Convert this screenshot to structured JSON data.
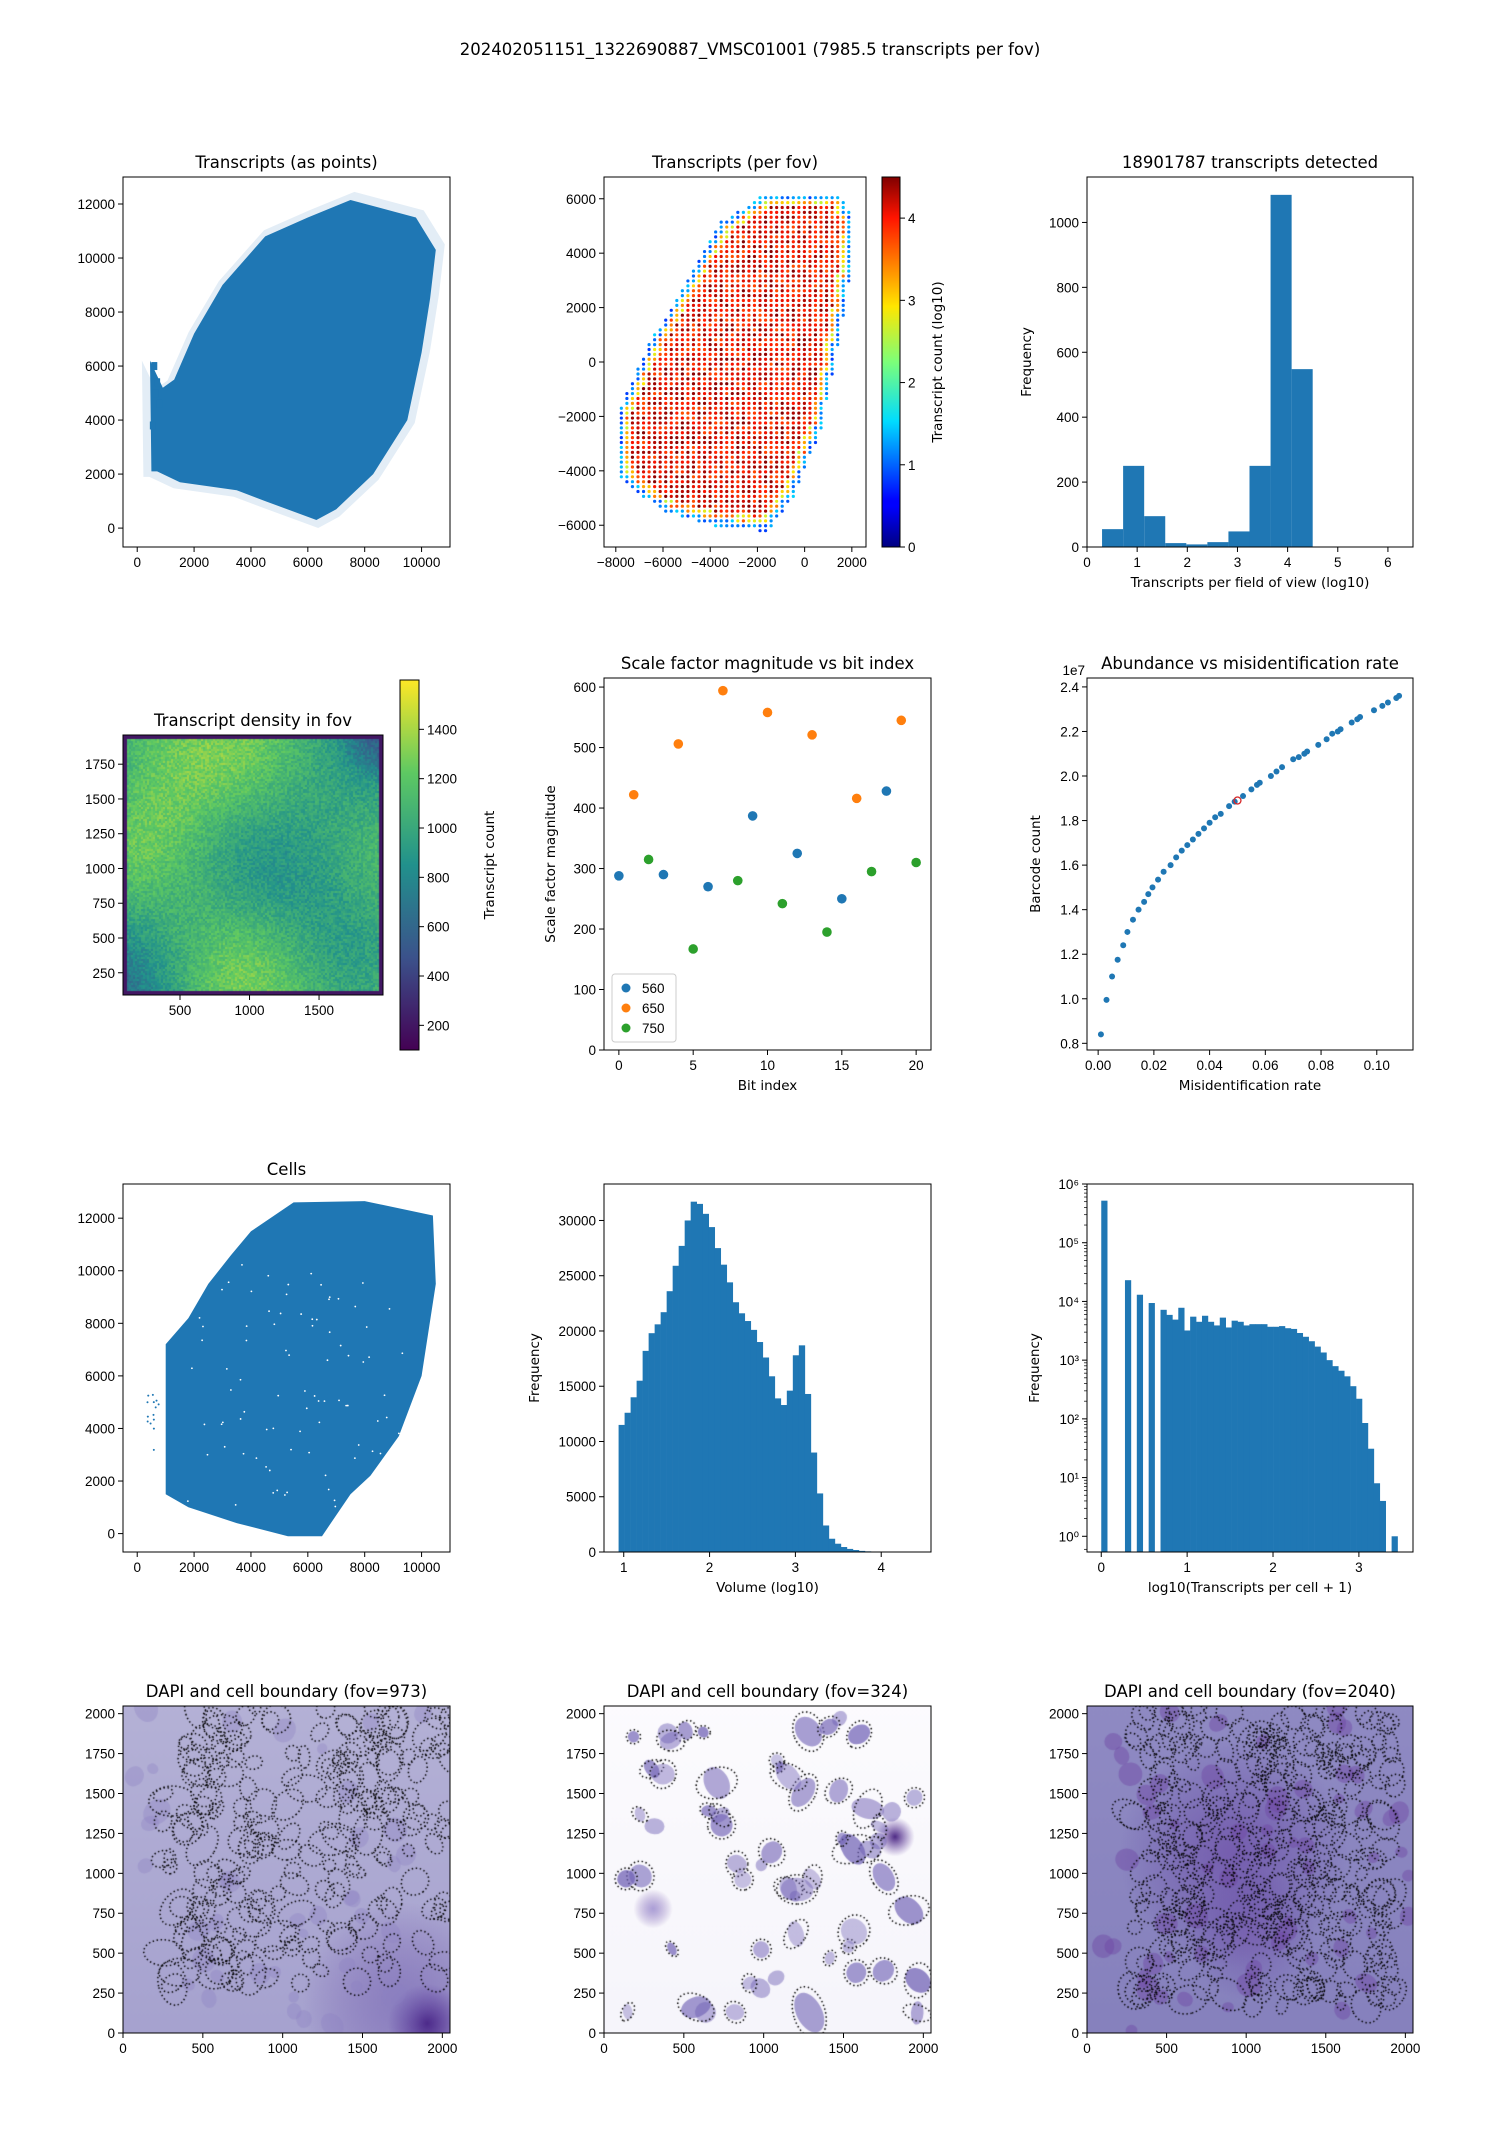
{
  "suptitle": "202402051151_1322690887_VMSC01001 (7985.5 transcripts per fov)",
  "colors": {
    "blue": "#1f77b4",
    "orange": "#ff7f0e",
    "green": "#2ca02c",
    "highlight": "#d62728"
  },
  "chart_data": [
    {
      "type": "scatter",
      "title": "Transcripts (as points)",
      "xlabel": "",
      "ylabel": "",
      "xlim": [
        -500,
        11000
      ],
      "ylim": [
        -700,
        13000
      ],
      "xticks": [
        0,
        2000,
        4000,
        6000,
        8000,
        10000
      ],
      "xticklabels": [
        "0",
        "2000",
        "4000",
        "6000",
        "8000",
        "10000"
      ],
      "yticks": [
        0,
        2000,
        4000,
        6000,
        8000,
        10000,
        12000
      ],
      "yticklabels": [
        "0",
        "2000",
        "4000",
        "6000",
        "8000",
        "10000",
        "12000"
      ],
      "color": "#1f77b4",
      "outline": [
        [
          500,
          2100
        ],
        [
          450,
          6200
        ],
        [
          900,
          5200
        ],
        [
          1300,
          5500
        ],
        [
          2000,
          7200
        ],
        [
          3000,
          9000
        ],
        [
          4500,
          10800
        ],
        [
          6000,
          11500
        ],
        [
          7500,
          12150
        ],
        [
          9800,
          11500
        ],
        [
          10500,
          10300
        ],
        [
          10300,
          8500
        ],
        [
          10000,
          6500
        ],
        [
          9500,
          4000
        ],
        [
          8300,
          2000
        ],
        [
          7000,
          700
        ],
        [
          6300,
          300
        ],
        [
          4500,
          1000
        ],
        [
          3500,
          1400
        ],
        [
          1500,
          1700
        ],
        [
          700,
          2100
        ]
      ]
    },
    {
      "type": "scatter",
      "title": "Transcripts (per fov)",
      "xlabel": "",
      "ylabel": "",
      "xlim": [
        -8500,
        2600
      ],
      "ylim": [
        -6800,
        6800
      ],
      "xticks": [
        -8000,
        -6000,
        -4000,
        -2000,
        0,
        2000
      ],
      "xticklabels": [
        "−8000",
        "−6000",
        "−4000",
        "−2000",
        "0",
        "2000"
      ],
      "yticks": [
        -6000,
        -4000,
        -2000,
        0,
        2000,
        4000,
        6000
      ],
      "yticklabels": [
        "−6000",
        "−4000",
        "−2000",
        "0",
        "2000",
        "4000",
        "6000"
      ],
      "colormap": "jet",
      "colorbar": {
        "label": "Transcript count (log10)",
        "range": [
          0,
          4.5
        ],
        "ticks": [
          0,
          1,
          2,
          3,
          4
        ],
        "ticklabels": [
          "0",
          "1",
          "2",
          "3",
          "4"
        ]
      },
      "outline": [
        [
          -1600,
          -6250
        ],
        [
          -500,
          -5000
        ],
        [
          700,
          -2500
        ],
        [
          1500,
          1000
        ],
        [
          1900,
          3000
        ],
        [
          2100,
          5200
        ],
        [
          1500,
          6250
        ],
        [
          -1500,
          6250
        ],
        [
          -3500,
          5200
        ],
        [
          -5000,
          3000
        ],
        [
          -6700,
          500
        ],
        [
          -8000,
          -2000
        ],
        [
          -7800,
          -4300
        ],
        [
          -6000,
          -5500
        ],
        [
          -4000,
          -6000
        ]
      ]
    },
    {
      "type": "bar",
      "title": "18901787 transcripts detected",
      "xlabel": "Transcripts per field of view (log10)",
      "ylabel": "Frequency",
      "xlim": [
        0,
        6.5
      ],
      "ylim": [
        0,
        1140
      ],
      "xticks": [
        0,
        1,
        2,
        3,
        4,
        5,
        6
      ],
      "xticklabels": [
        "0",
        "1",
        "2",
        "3",
        "4",
        "5",
        "6"
      ],
      "yticks": [
        0,
        200,
        400,
        600,
        800,
        1000
      ],
      "yticklabels": [
        "0",
        "200",
        "400",
        "600",
        "800",
        "1000"
      ],
      "bin_edges": [
        0.3,
        0.72,
        1.14,
        1.56,
        1.98,
        2.4,
        2.82,
        3.24,
        3.66,
        4.08,
        4.5
      ],
      "values": [
        55,
        250,
        95,
        12,
        8,
        15,
        48,
        250,
        1085,
        548
      ]
    },
    {
      "type": "heatmap",
      "title": "Transcript density in fov",
      "xlabel": "",
      "ylabel": "",
      "xlim": [
        90,
        1960
      ],
      "ylim": [
        90,
        1960
      ],
      "xticks": [
        500,
        1000,
        1500
      ],
      "xticklabels": [
        "500",
        "1000",
        "1500"
      ],
      "yticks": [
        250,
        500,
        750,
        1000,
        1250,
        1500,
        1750
      ],
      "yticklabels": [
        "250",
        "500",
        "750",
        "1000",
        "1250",
        "1500",
        "1750"
      ],
      "colormap": "viridis",
      "colorbar": {
        "label": "Transcript count",
        "range": [
          100,
          1600
        ],
        "ticks": [
          200,
          400,
          600,
          800,
          1000,
          1200,
          1400
        ],
        "ticklabels": [
          "200",
          "400",
          "600",
          "800",
          "1000",
          "1200",
          "1400"
        ]
      }
    },
    {
      "type": "scatter",
      "title": "Scale factor magnitude vs bit index",
      "xlabel": "Bit index",
      "ylabel": "Scale factor magnitude",
      "xlim": [
        -1,
        21
      ],
      "ylim": [
        0,
        615
      ],
      "xticks": [
        0,
        5,
        10,
        15,
        20
      ],
      "xticklabels": [
        "0",
        "5",
        "10",
        "15",
        "20"
      ],
      "yticks": [
        0,
        100,
        200,
        300,
        400,
        500,
        600
      ],
      "yticklabels": [
        "0",
        "100",
        "200",
        "300",
        "400",
        "500",
        "600"
      ],
      "legend": "lower-left",
      "series": [
        {
          "name": "560",
          "color": "#1f77b4",
          "x": [
            0,
            3,
            6,
            9,
            12,
            15,
            18
          ],
          "y": [
            288,
            290,
            270,
            387,
            325,
            250,
            428
          ]
        },
        {
          "name": "650",
          "color": "#ff7f0e",
          "x": [
            1,
            4,
            7,
            10,
            13,
            16,
            19
          ],
          "y": [
            422,
            506,
            594,
            558,
            521,
            416,
            545
          ]
        },
        {
          "name": "750",
          "color": "#2ca02c",
          "x": [
            2,
            5,
            8,
            11,
            14,
            17,
            20
          ],
          "y": [
            315,
            167,
            280,
            242,
            195,
            295,
            310
          ]
        }
      ]
    },
    {
      "type": "scatter",
      "title": "Abundance vs misidentification rate",
      "xlabel": "Misidentification rate",
      "ylabel": "Barcode count",
      "y_offset_text": "1e7",
      "xlim": [
        -0.004,
        0.113
      ],
      "ylim": [
        0.77,
        2.44
      ],
      "xticks": [
        0,
        0.02,
        0.04,
        0.06,
        0.08,
        0.1
      ],
      "xticklabels": [
        "0.00",
        "0.02",
        "0.04",
        "0.06",
        "0.08",
        "0.10"
      ],
      "yticks": [
        0.8,
        1.0,
        1.2,
        1.4,
        1.6,
        1.8,
        2.0,
        2.2,
        2.4
      ],
      "yticklabels": [
        "0.8",
        "1.0",
        "1.2",
        "1.4",
        "1.6",
        "1.8",
        "2.0",
        "2.2",
        "2.4"
      ],
      "x": [
        0.001,
        0.003,
        0.005,
        0.007,
        0.009,
        0.0105,
        0.0125,
        0.0145,
        0.0165,
        0.018,
        0.0195,
        0.0215,
        0.0235,
        0.026,
        0.028,
        0.03,
        0.032,
        0.034,
        0.036,
        0.038,
        0.04,
        0.042,
        0.044,
        0.047,
        0.049,
        0.052,
        0.055,
        0.057,
        0.058,
        0.062,
        0.064,
        0.066,
        0.07,
        0.072,
        0.074,
        0.075,
        0.079,
        0.082,
        0.084,
        0.086,
        0.087,
        0.091,
        0.093,
        0.094,
        0.099,
        0.102,
        0.104,
        0.107,
        0.108
      ],
      "y": [
        0.84,
        0.995,
        1.1,
        1.175,
        1.24,
        1.3,
        1.355,
        1.4,
        1.435,
        1.47,
        1.5,
        1.535,
        1.57,
        1.6,
        1.635,
        1.665,
        1.69,
        1.715,
        1.74,
        1.765,
        1.79,
        1.815,
        1.83,
        1.865,
        1.885,
        1.91,
        1.94,
        1.96,
        1.97,
        2.0,
        2.02,
        2.04,
        2.075,
        2.085,
        2.1,
        2.11,
        2.14,
        2.165,
        2.19,
        2.2,
        2.21,
        2.24,
        2.255,
        2.265,
        2.295,
        2.315,
        2.33,
        2.35,
        2.36
      ],
      "highlight": {
        "x": 0.05,
        "y": 1.89
      }
    },
    {
      "type": "scatter",
      "title": "Cells",
      "xlabel": "",
      "ylabel": "",
      "xlim": [
        -500,
        11000
      ],
      "ylim": [
        -700,
        13300
      ],
      "xticks": [
        0,
        2000,
        4000,
        6000,
        8000,
        10000
      ],
      "xticklabels": [
        "0",
        "2000",
        "4000",
        "6000",
        "8000",
        "10000"
      ],
      "yticks": [
        0,
        2000,
        4000,
        6000,
        8000,
        10000,
        12000
      ],
      "yticklabels": [
        "0",
        "2000",
        "4000",
        "6000",
        "8000",
        "10000",
        "12000"
      ],
      "color": "#1f77b4",
      "outline": [
        [
          1000,
          1500
        ],
        [
          1000,
          7200
        ],
        [
          1800,
          8200
        ],
        [
          2500,
          9500
        ],
        [
          3300,
          10600
        ],
        [
          4000,
          11500
        ],
        [
          5500,
          12600
        ],
        [
          8000,
          12650
        ],
        [
          10400,
          12100
        ],
        [
          10500,
          9500
        ],
        [
          10000,
          6000
        ],
        [
          9200,
          3700
        ],
        [
          8200,
          2200
        ],
        [
          7500,
          1500
        ],
        [
          6500,
          -100
        ],
        [
          5300,
          -100
        ],
        [
          3500,
          400
        ],
        [
          1800,
          1000
        ]
      ]
    },
    {
      "type": "bar",
      "title": "",
      "xlabel": "Volume (log10)",
      "ylabel": "Frequency",
      "xlim": [
        0.77,
        4.58
      ],
      "ylim": [
        0,
        33300
      ],
      "xticks": [
        1,
        2,
        3,
        4
      ],
      "xticklabels": [
        "1",
        "2",
        "3",
        "4"
      ],
      "yticks": [
        0,
        5000,
        10000,
        15000,
        20000,
        25000,
        30000
      ],
      "yticklabels": [
        "0",
        "5000",
        "10000",
        "15000",
        "20000",
        "25000",
        "30000"
      ],
      "bin_range": [
        0.94,
        4.44
      ],
      "values": [
        11500,
        12600,
        14000,
        15500,
        18200,
        19800,
        20600,
        21700,
        23600,
        25900,
        27700,
        30000,
        31700,
        31500,
        30600,
        29400,
        27500,
        26000,
        24400,
        22600,
        21600,
        20900,
        20100,
        19000,
        17600,
        15900,
        13900,
        13300,
        14600,
        17800,
        18700,
        14300,
        9000,
        5300,
        2400,
        1200,
        750,
        450,
        280,
        180,
        100,
        60,
        40,
        25,
        15,
        10,
        8,
        5,
        3,
        2
      ]
    },
    {
      "type": "bar",
      "title": "",
      "xlabel": "log10(Transcripts per cell + 1)",
      "ylabel": "Frequency",
      "yscale": "log",
      "xlim": [
        -0.166,
        3.63
      ],
      "ylim": [
        0.54,
        1000000
      ],
      "xticks": [
        0,
        1,
        2,
        3
      ],
      "xticklabels": [
        "0",
        "1",
        "2",
        "3"
      ],
      "yticks": [
        1,
        10,
        100,
        1000,
        10000,
        100000,
        1000000
      ],
      "yticklabels": [
        "10⁰",
        "10¹",
        "10²",
        "10³",
        "10⁴",
        "10⁵",
        "10⁶"
      ],
      "bin_range": [
        0,
        3.45
      ],
      "values": [
        520000,
        0,
        0,
        0,
        23000,
        0,
        13000,
        0,
        9400,
        0,
        7200,
        5900,
        4900,
        7800,
        3200,
        5500,
        4500,
        5700,
        4500,
        3900,
        5300,
        3600,
        4700,
        4500,
        3900,
        4100,
        4100,
        4100,
        3700,
        3700,
        3800,
        3500,
        3400,
        2900,
        2500,
        2100,
        1700,
        1350,
        1000,
        790,
        660,
        530,
        360,
        220,
        85,
        31,
        8,
        4,
        0,
        1
      ]
    },
    {
      "type": "image",
      "title": "DAPI and cell boundary (fov=973)",
      "xlabel": "",
      "ylabel": "",
      "xlim": [
        0,
        2048
      ],
      "ylim": [
        0,
        2048
      ],
      "xticks": [
        0,
        500,
        1000,
        1500,
        2000
      ],
      "xticklabels": [
        "0",
        "500",
        "1000",
        "1500",
        "2000"
      ],
      "yticks": [
        0,
        250,
        500,
        750,
        1000,
        1250,
        1500,
        1750,
        2000
      ],
      "yticklabels": [
        "0",
        "250",
        "500",
        "750",
        "1000",
        "1250",
        "1500",
        "1750",
        "2000"
      ],
      "colormap": "Purples"
    },
    {
      "type": "image",
      "title": "DAPI and cell boundary (fov=324)",
      "xlabel": "",
      "ylabel": "",
      "xlim": [
        0,
        2048
      ],
      "ylim": [
        0,
        2048
      ],
      "xticks": [
        0,
        500,
        1000,
        1500,
        2000
      ],
      "xticklabels": [
        "0",
        "500",
        "1000",
        "1500",
        "2000"
      ],
      "yticks": [
        0,
        250,
        500,
        750,
        1000,
        1250,
        1500,
        1750,
        2000
      ],
      "yticklabels": [
        "0",
        "250",
        "500",
        "750",
        "1000",
        "1250",
        "1500",
        "1750",
        "2000"
      ],
      "colormap": "Purples"
    },
    {
      "type": "image",
      "title": "DAPI and cell boundary (fov=2040)",
      "xlabel": "",
      "ylabel": "",
      "xlim": [
        0,
        2048
      ],
      "ylim": [
        0,
        2048
      ],
      "xticks": [
        0,
        500,
        1000,
        1500,
        2000
      ],
      "xticklabels": [
        "0",
        "500",
        "1000",
        "1500",
        "2000"
      ],
      "yticks": [
        0,
        250,
        500,
        750,
        1000,
        1250,
        1500,
        1750,
        2000
      ],
      "yticklabels": [
        "0",
        "250",
        "500",
        "750",
        "1000",
        "1250",
        "1500",
        "1750",
        "2000"
      ],
      "colormap": "Purples"
    }
  ]
}
